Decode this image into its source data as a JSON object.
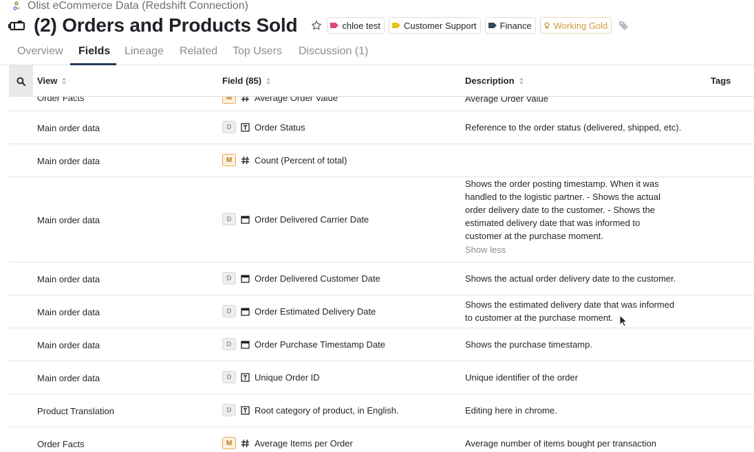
{
  "breadcrumb": {
    "connection": "Olist eCommerce Data (Redshift Connection)"
  },
  "header": {
    "title": "(2) Orders and Products Sold",
    "tags": [
      {
        "label": "chloe test",
        "color": "#e0457b"
      },
      {
        "label": "Customer Support",
        "color": "#e6c619"
      },
      {
        "label": "Finance",
        "color": "#2f4a5a"
      },
      {
        "label": "Working Gold",
        "color": "#c99a3b"
      }
    ]
  },
  "tabs": [
    {
      "label": "Overview"
    },
    {
      "label": "Fields"
    },
    {
      "label": "Lineage"
    },
    {
      "label": "Related"
    },
    {
      "label": "Top Users"
    },
    {
      "label": "Discussion (1)"
    }
  ],
  "active_tab": "Fields",
  "table": {
    "columns": {
      "view": "View",
      "field": "Field (85)",
      "description": "Description",
      "tags": "Tags"
    },
    "rows": [
      {
        "view": "Order Facts",
        "kind": "M",
        "type": "number",
        "field": "Average Order Value",
        "description": "Average Order Value"
      },
      {
        "view": "Main order data",
        "kind": "D",
        "type": "text",
        "field": "Order Status",
        "description": "Reference to the order status (delivered, shipped, etc)."
      },
      {
        "view": "Main order data",
        "kind": "M",
        "type": "number",
        "field": "Count (Percent of total)",
        "description": ""
      },
      {
        "view": "Main order data",
        "kind": "D",
        "type": "date",
        "field": "Order Delivered Carrier Date",
        "description": "Shows the order posting timestamp. When it was handled to the logistic partner. - Shows the actual order delivery date to the customer. - Shows the estimated delivery date that was informed to customer at the purchase moment.",
        "show_less": "Show less"
      },
      {
        "view": "Main order data",
        "kind": "D",
        "type": "date",
        "field": "Order Delivered Customer Date",
        "description": "Shows the actual order delivery date to the customer."
      },
      {
        "view": "Main order data",
        "kind": "D",
        "type": "date",
        "field": "Order Estimated Delivery Date",
        "description": "Shows the estimated delivery date that was informed to customer at the purchase moment."
      },
      {
        "view": "Main order data",
        "kind": "D",
        "type": "date",
        "field": "Order Purchase Timestamp Date",
        "description": "Shows the purchase timestamp."
      },
      {
        "view": "Main order data",
        "kind": "D",
        "type": "text",
        "field": "Unique Order ID",
        "description": "Unique identifier of the order"
      },
      {
        "view": "Product Translation",
        "kind": "D",
        "type": "text",
        "field": "Root category of product, in English.",
        "description": "Editing here in chrome."
      },
      {
        "view": "Order Facts",
        "kind": "M",
        "type": "number",
        "field": "Average Items per Order",
        "description": "Average number of items bought per transaction"
      }
    ]
  }
}
